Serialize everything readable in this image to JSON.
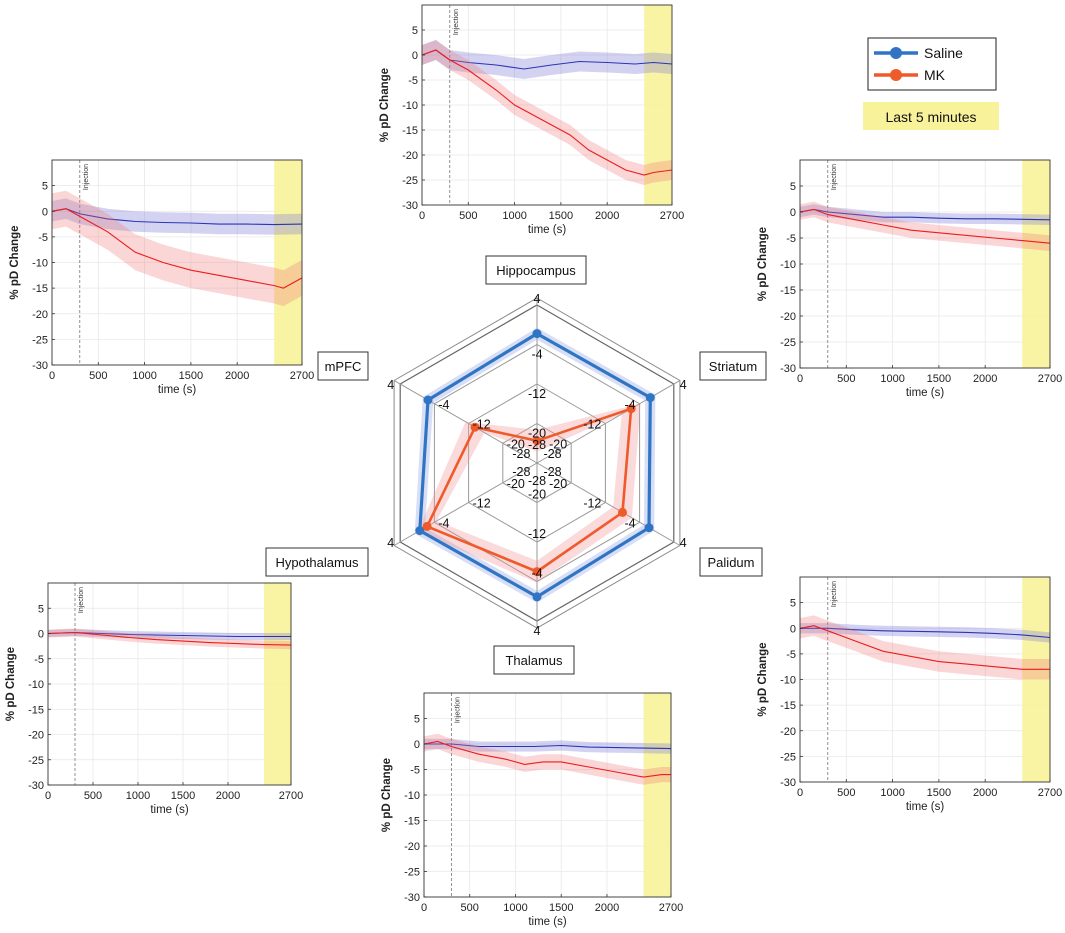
{
  "chart_data": {
    "legend": {
      "entries": [
        {
          "name": "Saline",
          "color": "#2f75c4"
        },
        {
          "name": "MK",
          "color": "#ef5a2b"
        }
      ],
      "note": "Last 5 minutes",
      "note_color": "#f8f29a"
    },
    "panels": [
      {
        "region": "Hippocampus",
        "type": "line",
        "xlabel": "time (s)",
        "ylabel": "% pD Change",
        "xticks": [
          "0",
          "500",
          "1000",
          "1500",
          "2000",
          "2700"
        ],
        "yticks": [
          "5",
          "0",
          "-5",
          "-10",
          "-15",
          "-20",
          "-25",
          "-30"
        ],
        "xlim": [
          0,
          2700
        ],
        "ylim": [
          -30,
          10
        ],
        "injection_label": "Injection",
        "injection_time": 300,
        "highlight": [
          2400,
          2700
        ],
        "series": [
          {
            "name": "Saline",
            "x": [
              0,
              150,
              300,
              500,
              800,
              1100,
              1400,
              1700,
              2000,
              2300,
              2500,
              2700
            ],
            "y": [
              0,
              1,
              -1,
              -1.5,
              -2,
              -2.8,
              -2,
              -1.3,
              -1.5,
              -1.8,
              -1.5,
              -1.8
            ],
            "err": 2
          },
          {
            "name": "MK",
            "x": [
              0,
              150,
              300,
              500,
              800,
              1000,
              1200,
              1400,
              1600,
              1800,
              2000,
              2200,
              2400,
              2500,
              2700
            ],
            "y": [
              0,
              1,
              -1,
              -3,
              -7,
              -10,
              -12,
              -14,
              -16,
              -19,
              -21,
              -23,
              -24,
              -23.5,
              -23
            ],
            "err": 2
          }
        ]
      },
      {
        "region": "mPFC",
        "type": "line",
        "xlabel": "time (s)",
        "ylabel": "% pD Change",
        "xticks": [
          "0",
          "500",
          "1000",
          "1500",
          "2000",
          "2700"
        ],
        "yticks": [
          "5",
          "0",
          "-5",
          "-10",
          "-15",
          "-20",
          "-25",
          "-30"
        ],
        "xlim": [
          0,
          2700
        ],
        "ylim": [
          -30,
          10
        ],
        "injection_label": "Injection",
        "injection_time": 300,
        "highlight": [
          2400,
          2700
        ],
        "series": [
          {
            "name": "Saline",
            "x": [
              0,
              150,
              300,
              600,
              900,
              1200,
              1500,
              1800,
              2100,
              2400,
              2700
            ],
            "y": [
              0,
              0.5,
              -0.5,
              -1.5,
              -2,
              -2.2,
              -2.3,
              -2.5,
              -2.5,
              -2.6,
              -2.5
            ],
            "err": 2
          },
          {
            "name": "MK",
            "x": [
              0,
              150,
              300,
              600,
              900,
              1200,
              1500,
              1800,
              2100,
              2400,
              2500,
              2700
            ],
            "y": [
              0,
              0.5,
              -1,
              -4,
              -8,
              -10,
              -11.5,
              -12.5,
              -13.5,
              -14.5,
              -15,
              -13
            ],
            "err": 3.5
          }
        ]
      },
      {
        "region": "Striatum",
        "type": "line",
        "xlabel": "time (s)",
        "ylabel": "% pD Change",
        "xticks": [
          "0",
          "500",
          "1000",
          "1500",
          "2000",
          "2700"
        ],
        "yticks": [
          "5",
          "0",
          "-5",
          "-10",
          "-15",
          "-20",
          "-25",
          "-30"
        ],
        "xlim": [
          0,
          2700
        ],
        "ylim": [
          -30,
          10
        ],
        "injection_label": "Injection",
        "injection_time": 300,
        "highlight": [
          2400,
          2700
        ],
        "series": [
          {
            "name": "Saline",
            "x": [
              0,
              150,
              300,
              600,
              900,
              1200,
              1500,
              1800,
              2100,
              2400,
              2700
            ],
            "y": [
              0,
              0.5,
              0,
              -0.5,
              -1,
              -1,
              -1.2,
              -1.3,
              -1.3,
              -1.4,
              -1.5
            ],
            "err": 1
          },
          {
            "name": "MK",
            "x": [
              0,
              150,
              300,
              600,
              900,
              1200,
              1500,
              1800,
              2100,
              2400,
              2700
            ],
            "y": [
              0,
              0.5,
              -0.5,
              -1.5,
              -2.5,
              -3.5,
              -4,
              -4.5,
              -5,
              -5.5,
              -6
            ],
            "err": 1.5
          }
        ]
      },
      {
        "region": "Hypothalamus",
        "type": "line",
        "xlabel": "time (s)",
        "ylabel": "% pD Change",
        "xticks": [
          "0",
          "500",
          "1000",
          "1500",
          "2000",
          "2700"
        ],
        "yticks": [
          "5",
          "0",
          "-5",
          "-10",
          "-15",
          "-20",
          "-25",
          "-30"
        ],
        "xlim": [
          0,
          2700
        ],
        "ylim": [
          -30,
          10
        ],
        "injection_label": "Injection",
        "injection_time": 300,
        "highlight": [
          2400,
          2700
        ],
        "series": [
          {
            "name": "Saline",
            "x": [
              0,
              300,
              600,
              900,
              1200,
              1500,
              1800,
              2100,
              2400,
              2700
            ],
            "y": [
              0,
              0.2,
              0,
              -0.2,
              -0.3,
              -0.4,
              -0.5,
              -0.6,
              -0.6,
              -0.6
            ],
            "err": 0.7
          },
          {
            "name": "MK",
            "x": [
              0,
              300,
              600,
              900,
              1200,
              1500,
              1800,
              2100,
              2400,
              2700
            ],
            "y": [
              0,
              0.2,
              -0.3,
              -0.8,
              -1.2,
              -1.5,
              -1.8,
              -2,
              -2.2,
              -2.3
            ],
            "err": 0.8
          }
        ]
      },
      {
        "region": "Thalamus",
        "type": "line",
        "xlabel": "time (s)",
        "ylabel": "% pD Change",
        "xticks": [
          "0",
          "500",
          "1000",
          "1500",
          "2000",
          "2700"
        ],
        "yticks": [
          "5",
          "0",
          "-5",
          "-10",
          "-15",
          "-20",
          "-25",
          "-30"
        ],
        "xlim": [
          0,
          2700
        ],
        "ylim": [
          -30,
          10
        ],
        "injection_label": "Injection",
        "injection_time": 300,
        "highlight": [
          2400,
          2700
        ],
        "series": [
          {
            "name": "Saline",
            "x": [
              0,
              300,
              600,
              900,
              1200,
              1500,
              1800,
              2100,
              2400,
              2700
            ],
            "y": [
              0,
              0,
              -0.5,
              -0.5,
              -0.5,
              -0.3,
              -0.6,
              -0.7,
              -0.8,
              -0.9
            ],
            "err": 1
          },
          {
            "name": "MK",
            "x": [
              0,
              150,
              300,
              600,
              900,
              1100,
              1300,
              1500,
              1800,
              2100,
              2400,
              2600,
              2700
            ],
            "y": [
              0,
              0.5,
              -0.5,
              -2,
              -3,
              -4,
              -3.5,
              -3.5,
              -4.5,
              -5.5,
              -6.5,
              -6,
              -6
            ],
            "err": 1.5
          }
        ]
      },
      {
        "region": "Palidum",
        "type": "line",
        "xlabel": "time (s)",
        "ylabel": "% pD Change",
        "xticks": [
          "0",
          "500",
          "1000",
          "1500",
          "2000",
          "2700"
        ],
        "yticks": [
          "5",
          "0",
          "-5",
          "-10",
          "-15",
          "-20",
          "-25",
          "-30"
        ],
        "xlim": [
          0,
          2700
        ],
        "ylim": [
          -30,
          10
        ],
        "injection_label": "Injection",
        "injection_time": 300,
        "highlight": [
          2400,
          2700
        ],
        "series": [
          {
            "name": "Saline",
            "x": [
              0,
              300,
              600,
              900,
              1200,
              1500,
              1800,
              2100,
              2400,
              2700
            ],
            "y": [
              0,
              0,
              -0.3,
              -0.5,
              -0.6,
              -0.7,
              -0.8,
              -1,
              -1.3,
              -1.8
            ],
            "err": 1
          },
          {
            "name": "MK",
            "x": [
              0,
              150,
              300,
              600,
              900,
              1200,
              1500,
              1800,
              2100,
              2400,
              2700
            ],
            "y": [
              0,
              0.5,
              -0.5,
              -2.5,
              -4.5,
              -5.5,
              -6.5,
              -7,
              -7.5,
              -8,
              -8
            ],
            "err": 2
          }
        ]
      }
    ],
    "radar": {
      "type": "radar",
      "axes": [
        "Hippocampus",
        "Striatum",
        "Palidum",
        "Thalamus",
        "Hypothalamus",
        "mPFC"
      ],
      "range": [
        -28,
        4
      ],
      "ring_labels": [
        "4",
        "-4",
        "-12",
        "-20",
        "-28"
      ],
      "series": [
        {
          "name": "Saline",
          "values": [
            -1.8,
            -1.5,
            -1.8,
            -0.9,
            -0.6,
            -2.5
          ]
        },
        {
          "name": "MK",
          "values": [
            -23.5,
            -6,
            -8,
            -6,
            -2.3,
            -13.5
          ]
        }
      ]
    }
  }
}
